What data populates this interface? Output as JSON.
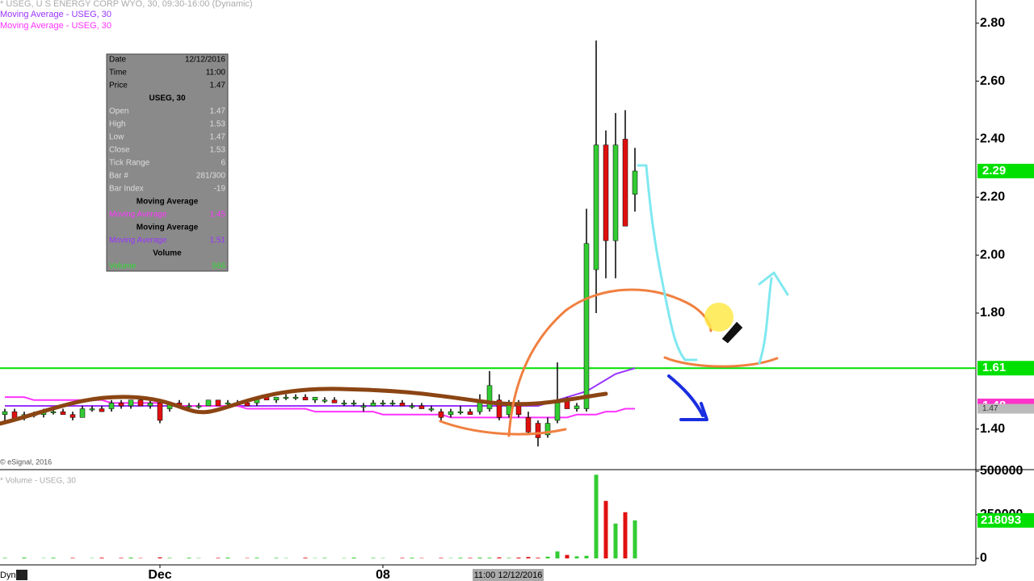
{
  "header": {
    "title": "* USEG, U S ENERGY CORP WYO, 30, 09:30-16:00 (Dynamic)",
    "footer": "Dyn"
  },
  "info_panel": {
    "rows": [
      {
        "label": "Date",
        "value": "12/12/2016",
        "color": "#000000"
      },
      {
        "label": "Time",
        "value": "11:00",
        "color": "#000000"
      },
      {
        "label": "Price",
        "value": "1.47",
        "color": "#000000"
      },
      {
        "heading": "USEG, 30"
      },
      {
        "label": "Open",
        "value": "1.47",
        "color": "#dddddd"
      },
      {
        "label": "High",
        "value": "1.53",
        "color": "#dddddd"
      },
      {
        "label": "Low",
        "value": "1.47",
        "color": "#dddddd"
      },
      {
        "label": "Close",
        "value": "1.53",
        "color": "#dddddd"
      },
      {
        "label": "Tick Range",
        "value": "6",
        "color": "#dddddd"
      },
      {
        "label": "Bar #",
        "value": "281/300",
        "color": "#dddddd"
      },
      {
        "label": "Bar Index",
        "value": "-19",
        "color": "#dddddd"
      },
      {
        "heading": "Moving Average"
      },
      {
        "label": "Moving Average",
        "value": "1.45",
        "color": "#ff33ff"
      },
      {
        "heading": "Moving Average"
      },
      {
        "label": "Moving Average",
        "value": "1.51",
        "color": "#9933ff"
      },
      {
        "heading": "Volume"
      },
      {
        "label": "Volume",
        "value": "566",
        "color": "#33dd33"
      }
    ]
  },
  "crosshair": {
    "label": "11:00 12/12/2016"
  },
  "chart_data": {
    "type": "candlestick",
    "credit": "© eSignal, 2016",
    "volume_title": "* Volume - USEG, 30",
    "up_color": "#33cc33",
    "down_color": "#e01010",
    "categories": [
      null,
      null,
      null,
      null,
      null,
      null,
      null,
      null,
      null,
      null,
      null,
      null,
      null,
      null,
      null,
      null,
      "Dec",
      null,
      null,
      null,
      null,
      null,
      null,
      null,
      null,
      null,
      null,
      null,
      null,
      null,
      null,
      null,
      null,
      null,
      null,
      null,
      null,
      null,
      null,
      "08",
      null,
      null,
      null,
      null,
      null,
      null,
      null,
      null,
      null,
      null,
      null,
      null,
      null,
      null,
      null,
      null,
      null,
      null,
      null,
      null,
      null,
      null,
      null,
      null,
      null,
      null
    ],
    "open": [
      1.45,
      1.46,
      1.44,
      1.45,
      1.45,
      1.46,
      1.46,
      1.45,
      1.44,
      1.47,
      1.47,
      1.47,
      1.49,
      1.48,
      1.5,
      1.48,
      1.49,
      1.47,
      1.49,
      1.48,
      1.48,
      1.48,
      1.5,
      1.49,
      1.49,
      1.49,
      1.49,
      1.51,
      1.5,
      1.51,
      1.51,
      1.51,
      1.5,
      1.5,
      1.5,
      1.49,
      1.49,
      1.48,
      1.48,
      1.49,
      1.49,
      1.49,
      1.48,
      1.48,
      1.47,
      1.46,
      1.45,
      1.46,
      1.46,
      1.46,
      1.47,
      1.5,
      1.45,
      1.49,
      1.44,
      1.42,
      1.38,
      1.43,
      1.5,
      1.47,
      1.47,
      1.95,
      2.38,
      2.05,
      2.4,
      2.21
    ],
    "high": [
      1.47,
      1.47,
      1.46,
      1.46,
      1.47,
      1.47,
      1.47,
      1.46,
      1.48,
      1.48,
      1.48,
      1.5,
      1.5,
      1.5,
      1.51,
      1.5,
      1.5,
      1.49,
      1.5,
      1.49,
      1.49,
      1.5,
      1.5,
      1.5,
      1.5,
      1.5,
      1.51,
      1.52,
      1.51,
      1.52,
      1.52,
      1.52,
      1.51,
      1.51,
      1.51,
      1.5,
      1.5,
      1.49,
      1.5,
      1.5,
      1.5,
      1.5,
      1.49,
      1.49,
      1.48,
      1.47,
      1.47,
      1.48,
      1.47,
      1.52,
      1.6,
      1.52,
      1.5,
      1.5,
      1.46,
      1.43,
      1.44,
      1.63,
      1.51,
      1.49,
      2.16,
      2.74,
      2.43,
      2.49,
      2.5,
      2.37
    ],
    "low": [
      1.42,
      1.43,
      1.43,
      1.44,
      1.44,
      1.45,
      1.45,
      1.43,
      1.44,
      1.46,
      1.46,
      1.46,
      1.47,
      1.47,
      1.48,
      1.47,
      1.42,
      1.46,
      1.48,
      1.47,
      1.47,
      1.48,
      1.48,
      1.48,
      1.48,
      1.48,
      1.48,
      1.5,
      1.49,
      1.5,
      1.5,
      1.5,
      1.49,
      1.49,
      1.49,
      1.48,
      1.48,
      1.46,
      1.48,
      1.48,
      1.48,
      1.48,
      1.47,
      1.47,
      1.46,
      1.43,
      1.44,
      1.45,
      1.45,
      1.45,
      1.46,
      1.43,
      1.44,
      1.44,
      1.38,
      1.34,
      1.37,
      1.42,
      1.47,
      1.46,
      1.46,
      1.8,
      1.92,
      1.92,
      2.1,
      2.15
    ],
    "close": [
      1.46,
      1.43,
      1.45,
      1.45,
      1.46,
      1.46,
      1.45,
      1.44,
      1.47,
      1.47,
      1.46,
      1.49,
      1.48,
      1.5,
      1.48,
      1.49,
      1.43,
      1.49,
      1.48,
      1.48,
      1.48,
      1.5,
      1.48,
      1.49,
      1.49,
      1.48,
      1.51,
      1.5,
      1.51,
      1.51,
      1.51,
      1.5,
      1.51,
      1.5,
      1.49,
      1.49,
      1.49,
      1.48,
      1.49,
      1.49,
      1.49,
      1.48,
      1.48,
      1.47,
      1.47,
      1.44,
      1.46,
      1.46,
      1.45,
      1.5,
      1.55,
      1.44,
      1.49,
      1.45,
      1.39,
      1.37,
      1.42,
      1.49,
      1.47,
      1.48,
      2.04,
      2.38,
      2.05,
      2.38,
      2.1,
      2.29
    ],
    "volume": [
      3000,
      0,
      5000,
      0,
      2000,
      4000,
      0,
      3000,
      0,
      2000,
      4000,
      0,
      3000,
      5000,
      2000,
      0,
      6000,
      3000,
      0,
      4000,
      2000,
      0,
      3000,
      5000,
      0,
      2000,
      4000,
      0,
      3000,
      2000,
      0,
      4000,
      2000,
      3000,
      0,
      2000,
      5000,
      0,
      3000,
      2000,
      0,
      3000,
      4000,
      2000,
      0,
      3000,
      2000,
      4000,
      3000,
      5000,
      4000,
      6000,
      3000,
      5000,
      8000,
      4000,
      10000,
      40000,
      20000,
      12000,
      15000,
      480000,
      330000,
      200000,
      265000,
      218093
    ],
    "series": [
      {
        "name": "Moving Average - USEG, 30",
        "color": "#9933ff",
        "values": [
          1.48,
          1.48,
          1.48,
          1.48,
          1.48,
          1.48,
          1.48,
          1.48,
          1.48,
          1.48,
          1.48,
          1.48,
          1.48,
          1.48,
          1.48,
          1.48,
          1.48,
          1.48,
          1.48,
          1.48,
          1.48,
          1.48,
          1.48,
          1.48,
          1.48,
          1.48,
          1.48,
          1.48,
          1.48,
          1.48,
          1.48,
          1.48,
          1.48,
          1.48,
          1.48,
          1.48,
          1.48,
          1.48,
          1.48,
          1.48,
          1.48,
          1.48,
          1.48,
          1.48,
          1.48,
          1.48,
          1.48,
          1.48,
          1.48,
          1.48,
          1.48,
          1.48,
          1.48,
          1.48,
          1.48,
          1.48,
          1.49,
          1.5,
          1.51,
          1.52,
          1.53,
          1.55,
          1.57,
          1.59,
          1.6,
          1.61
        ]
      },
      {
        "name": "Moving Average - USEG, 30",
        "color": "#ff33ff",
        "values": [
          1.51,
          1.51,
          1.51,
          1.5,
          1.5,
          1.5,
          1.5,
          1.5,
          1.5,
          1.5,
          1.5,
          1.49,
          1.49,
          1.49,
          1.49,
          1.49,
          1.49,
          1.49,
          1.48,
          1.48,
          1.48,
          1.48,
          1.48,
          1.48,
          1.48,
          1.47,
          1.47,
          1.47,
          1.47,
          1.47,
          1.47,
          1.47,
          1.46,
          1.46,
          1.46,
          1.46,
          1.46,
          1.46,
          1.46,
          1.45,
          1.45,
          1.45,
          1.45,
          1.45,
          1.45,
          1.45,
          1.44,
          1.44,
          1.44,
          1.44,
          1.44,
          1.44,
          1.44,
          1.44,
          1.44,
          1.44,
          1.44,
          1.44,
          1.44,
          1.45,
          1.45,
          1.45,
          1.46,
          1.46,
          1.47,
          1.47
        ]
      }
    ],
    "ylim": [
      1.26,
      2.88
    ],
    "yticks": [
      {
        "value": 2.8,
        "label": "2.80"
      },
      {
        "value": 2.6,
        "label": "2.60"
      },
      {
        "value": 2.4,
        "label": "2.40"
      },
      {
        "value": 2.2,
        "label": "2.20"
      },
      {
        "value": 2.0,
        "label": "2.00"
      },
      {
        "value": 1.8,
        "label": "1.80"
      },
      {
        "value": 1.4,
        "label": "1.40"
      }
    ],
    "price_markers": [
      {
        "value": 2.29,
        "color": "#00e000"
      },
      {
        "value": 1.61,
        "color": "#00e000",
        "line": true
      },
      {
        "value": 1.48,
        "color": "#ff33cc"
      },
      {
        "value": 1.47,
        "color": "#bbbbbb"
      }
    ],
    "volume_marker_color": "#00e000",
    "y2lim": [
      0,
      500000
    ],
    "y2ticks": [
      0,
      250000,
      500000
    ]
  }
}
